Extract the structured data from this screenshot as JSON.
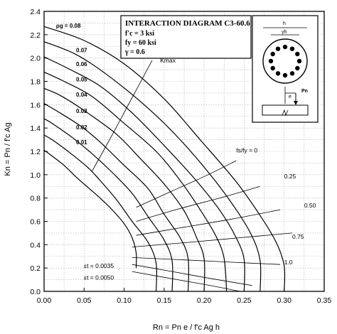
{
  "chart_data": {
    "type": "line",
    "title": "INTERACTION DIAGRAM C3-60.6",
    "params": [
      "f'c = 3 ksi",
      "fy = 60 ksi",
      "γ = 0.6"
    ],
    "xlabel": "Rn = Pn e / f'c Ag h",
    "ylabel": "Kn = Pn / f'c Ag",
    "xlim": [
      0,
      0.35
    ],
    "ylim": [
      0,
      2.4
    ],
    "x_ticks": [
      "0.00",
      "0.05",
      "0.10",
      "0.15",
      "0.20",
      "0.25",
      "0.30",
      "0.35"
    ],
    "y_ticks": [
      "0.0",
      "0.2",
      "0.4",
      "0.6",
      "0.8",
      "1.0",
      "1.2",
      "1.4",
      "1.6",
      "1.8",
      "2.0",
      "2.2",
      "2.4"
    ],
    "grid": true,
    "series": [
      {
        "name": "0.08",
        "x": [
          0.0,
          0.05,
          0.1,
          0.15,
          0.195,
          0.24,
          0.27,
          0.29,
          0.3,
          0.3
        ],
        "y": [
          2.27,
          2.15,
          1.95,
          1.65,
          1.3,
          0.94,
          0.65,
          0.42,
          0.22,
          0.0
        ]
      },
      {
        "name": "0.07",
        "x": [
          0.0,
          0.04,
          0.08,
          0.13,
          0.17,
          0.21,
          0.24,
          0.26,
          0.27,
          0.27
        ],
        "y": [
          2.14,
          2.03,
          1.85,
          1.57,
          1.3,
          0.98,
          0.7,
          0.47,
          0.26,
          0.0
        ]
      },
      {
        "name": "0.06",
        "x": [
          0.0,
          0.03,
          0.07,
          0.11,
          0.15,
          0.19,
          0.22,
          0.24,
          0.25,
          0.25
        ],
        "y": [
          2.01,
          1.91,
          1.76,
          1.53,
          1.25,
          0.95,
          0.69,
          0.46,
          0.27,
          0.0
        ]
      },
      {
        "name": "0.05",
        "x": [
          0.0,
          0.025,
          0.06,
          0.1,
          0.14,
          0.17,
          0.195,
          0.215,
          0.225,
          0.228
        ],
        "y": [
          1.88,
          1.8,
          1.67,
          1.44,
          1.2,
          0.95,
          0.7,
          0.47,
          0.28,
          0.0
        ]
      },
      {
        "name": "0.04",
        "x": [
          0.0,
          0.02,
          0.05,
          0.09,
          0.12,
          0.15,
          0.175,
          0.19,
          0.2,
          0.2
        ],
        "y": [
          1.74,
          1.68,
          1.55,
          1.35,
          1.14,
          0.92,
          0.69,
          0.47,
          0.28,
          0.0
        ]
      },
      {
        "name": "0.03",
        "x": [
          0.0,
          0.015,
          0.045,
          0.07,
          0.1,
          0.13,
          0.15,
          0.17,
          0.18,
          0.18
        ],
        "y": [
          1.61,
          1.55,
          1.42,
          1.28,
          1.08,
          0.88,
          0.66,
          0.46,
          0.28,
          0.0
        ]
      },
      {
        "name": "0.02",
        "x": [
          0.0,
          0.01,
          0.035,
          0.06,
          0.085,
          0.11,
          0.13,
          0.15,
          0.16,
          0.16
        ],
        "y": [
          1.48,
          1.44,
          1.32,
          1.18,
          1.02,
          0.84,
          0.64,
          0.44,
          0.26,
          0.0
        ]
      },
      {
        "name": "0.01",
        "x": [
          0.0,
          0.01,
          0.03,
          0.055,
          0.07,
          0.09,
          0.11,
          0.13,
          0.14,
          0.14
        ],
        "y": [
          1.34,
          1.3,
          1.2,
          1.06,
          0.95,
          0.79,
          0.6,
          0.42,
          0.24,
          0.0
        ]
      },
      {
        "name": "",
        "x": [
          0.0,
          0.01,
          0.025,
          0.04,
          0.055,
          0.07,
          0.085,
          0.1,
          0.11,
          0.115,
          0.115
        ],
        "y": [
          1.21,
          1.16,
          1.08,
          0.98,
          0.89,
          0.8,
          0.7,
          0.58,
          0.46,
          0.33,
          0.2
        ]
      }
    ],
    "strain_lines": [
      {
        "name": "fs/fy = 0",
        "x": [
          0.115,
          0.16,
          0.205,
          0.24
        ],
        "y": [
          0.72,
          0.86,
          1.0,
          1.12
        ]
      },
      {
        "name": "0.25",
        "x": [
          0.115,
          0.17,
          0.225,
          0.27
        ],
        "y": [
          0.6,
          0.71,
          0.81,
          0.9
        ]
      },
      {
        "name": "0.50",
        "x": [
          0.115,
          0.175,
          0.235,
          0.295
        ],
        "y": [
          0.48,
          0.55,
          0.62,
          0.7
        ]
      },
      {
        "name": "0.75",
        "x": [
          0.11,
          0.18,
          0.245,
          0.31
        ],
        "y": [
          0.38,
          0.42,
          0.46,
          0.5
        ]
      },
      {
        "name": "1.0",
        "x": [
          0.11,
          0.175,
          0.235,
          0.295
        ],
        "y": [
          0.29,
          0.27,
          0.25,
          0.23
        ]
      },
      {
        "name": "εt = 0.0035",
        "x": [
          0.11,
          0.16,
          0.2,
          0.26
        ],
        "y": [
          0.23,
          0.17,
          0.12,
          0.05
        ]
      },
      {
        "name": "εt = 0.0050",
        "x": [
          0.11,
          0.15,
          0.2,
          0.245
        ],
        "y": [
          0.17,
          0.12,
          0.06,
          0.0
        ]
      }
    ],
    "kmax_line": {
      "name": "Kmax",
      "x": [
        0.06,
        0.085,
        0.11,
        0.135
      ],
      "y": [
        1.03,
        1.34,
        1.66,
        1.98
      ]
    },
    "annotations": [
      "ρg = 0.08",
      "Kmax",
      "fs/fy = 0",
      "0.25",
      "0.50",
      "0.75",
      "1.0",
      "εt = 0.0035",
      "εt = 0.0050"
    ],
    "inset_labels": [
      "h",
      "γh",
      "e",
      "Pn"
    ]
  }
}
